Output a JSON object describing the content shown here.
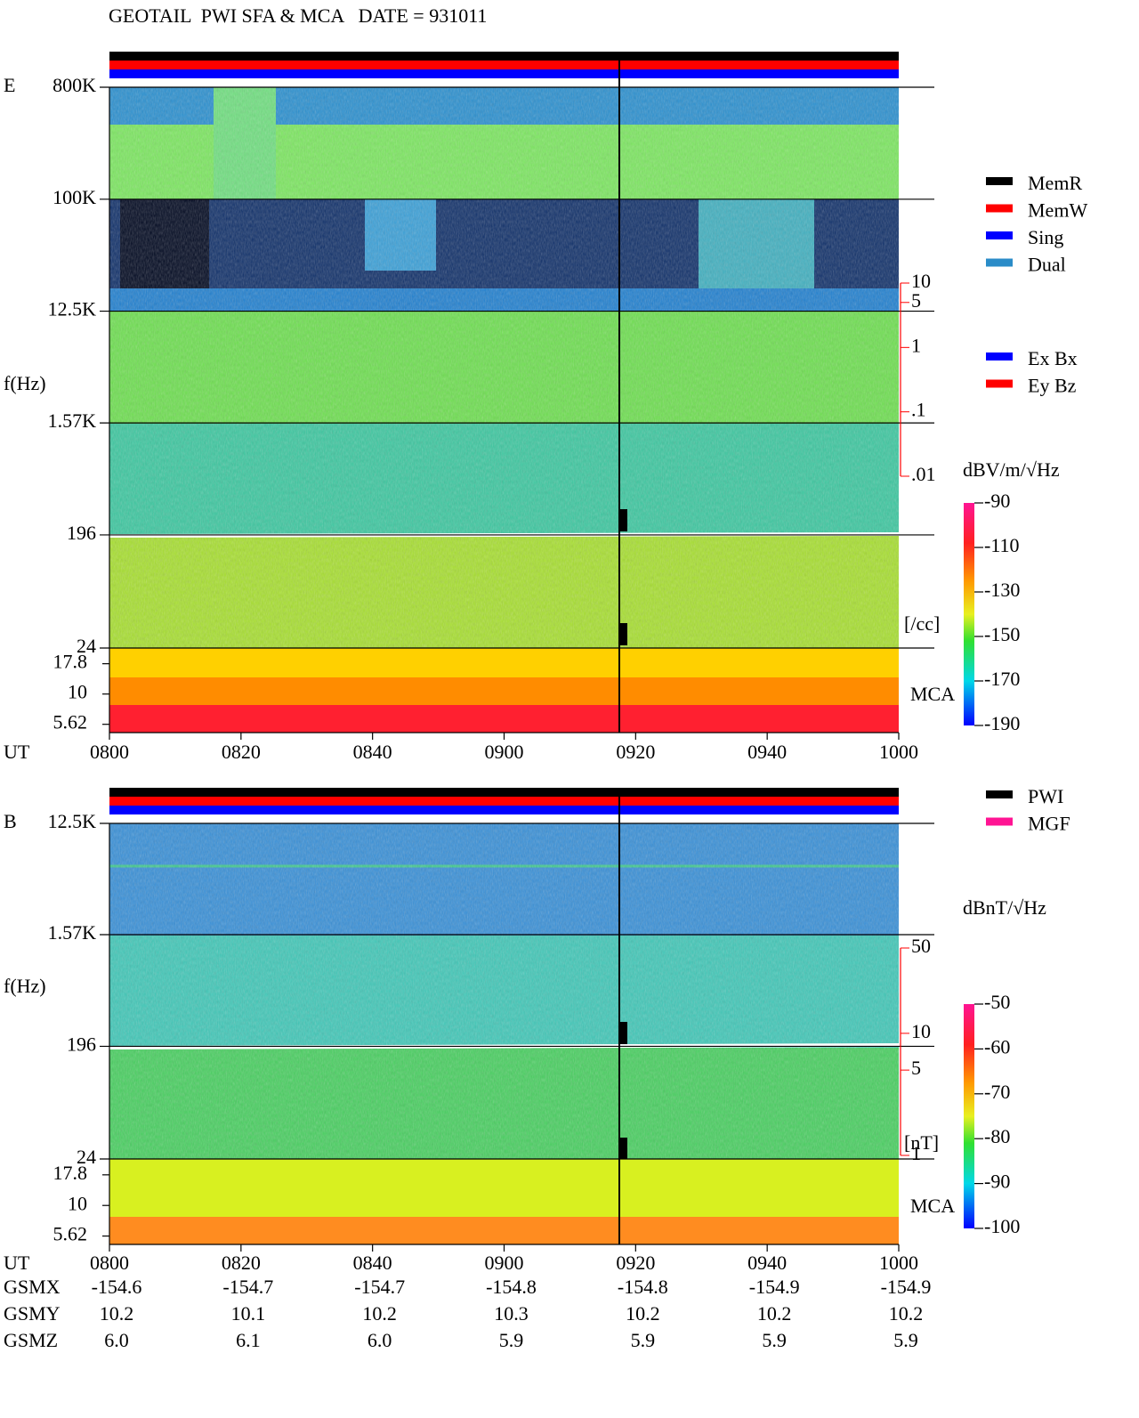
{
  "title": "GEOTAIL  PWI SFA & MCA   DATE = 931011",
  "chart_data": [
    {
      "type": "spectrogram",
      "component": "E",
      "xlabel": "UT",
      "ylabel": "f(Hz)",
      "xticks": [
        "0800",
        "0820",
        "0840",
        "0900",
        "0920",
        "0940",
        "1000"
      ],
      "log_y": true,
      "ylim": [
        24,
        800000
      ],
      "yticks": [
        {
          "value": 800000,
          "label": "800K"
        },
        {
          "value": 100000,
          "label": "100K"
        },
        {
          "value": 12500,
          "label": "12.5K"
        },
        {
          "value": 1570,
          "label": "1.57K"
        },
        196,
        24
      ],
      "mca_label": "MCA",
      "mca_ylim": [
        4.8,
        24
      ],
      "mca_yticks": [
        17.8,
        10,
        5.62
      ],
      "y2label": "[/cc]",
      "y2lim": [
        0.01,
        10
      ],
      "y2ticks": [
        10,
        5,
        1,
        {
          "value": 0.1,
          "label": ".1"
        },
        {
          "value": 0.01,
          "label": ".01"
        }
      ],
      "y2color": "#ff0000",
      "colorbar": {
        "label": "dBV/m/√Hz",
        "lim": [
          -190,
          -90
        ],
        "ticks": [
          -90,
          -110,
          -130,
          -150,
          -170,
          -190
        ]
      },
      "legends": [
        [
          {
            "name": "MemR",
            "color": "#000000"
          },
          {
            "name": "MemW",
            "color": "#ff0000"
          },
          {
            "name": "Sing",
            "color": "#0000ff"
          },
          {
            "name": "Dual",
            "color": "#2a8cc8"
          }
        ],
        [
          {
            "name": "Ex Bx",
            "color": "#0000ff"
          },
          {
            "name": "Ey Bz",
            "color": "#ff0000"
          }
        ]
      ]
    },
    {
      "type": "spectrogram",
      "component": "B",
      "xlabel": "UT",
      "ylabel": "f(Hz)",
      "xticks": [
        "0800",
        "0820",
        "0840",
        "0900",
        "0920",
        "0940",
        "1000"
      ],
      "log_y": true,
      "ylim": [
        24,
        12500
      ],
      "yticks": [
        {
          "value": 12500,
          "label": "12.5K"
        },
        {
          "value": 1570,
          "label": "1.57K"
        },
        196,
        24
      ],
      "mca_label": "MCA",
      "mca_ylim": [
        4.8,
        24
      ],
      "mca_yticks": [
        17.8,
        10,
        5.62
      ],
      "y2label": "[nT]",
      "y2lim": [
        1,
        50
      ],
      "y2ticks": [
        50,
        10,
        5,
        1
      ],
      "y2color": "#ff0000",
      "colorbar": {
        "label": "dBnT/√Hz",
        "lim": [
          -100,
          -50
        ],
        "ticks": [
          -50,
          -60,
          -70,
          -80,
          -90,
          -100
        ]
      },
      "legends": [
        [
          {
            "name": "PWI",
            "color": "#000000"
          },
          {
            "name": "MGF",
            "color": "#ff1493"
          }
        ]
      ]
    }
  ],
  "orbit": {
    "labels": [
      "GSMX",
      "GSMY",
      "GSMZ"
    ],
    "rows": [
      [
        "-154.6",
        "-154.7",
        "-154.7",
        "-154.8",
        "-154.8",
        "-154.9",
        "-154.9"
      ],
      [
        "10.2",
        "10.1",
        "10.2",
        "10.3",
        "10.2",
        "10.2",
        "10.2"
      ],
      [
        "6.0",
        "6.1",
        "6.0",
        "5.9",
        "5.9",
        "5.9",
        "5.9"
      ]
    ]
  }
}
